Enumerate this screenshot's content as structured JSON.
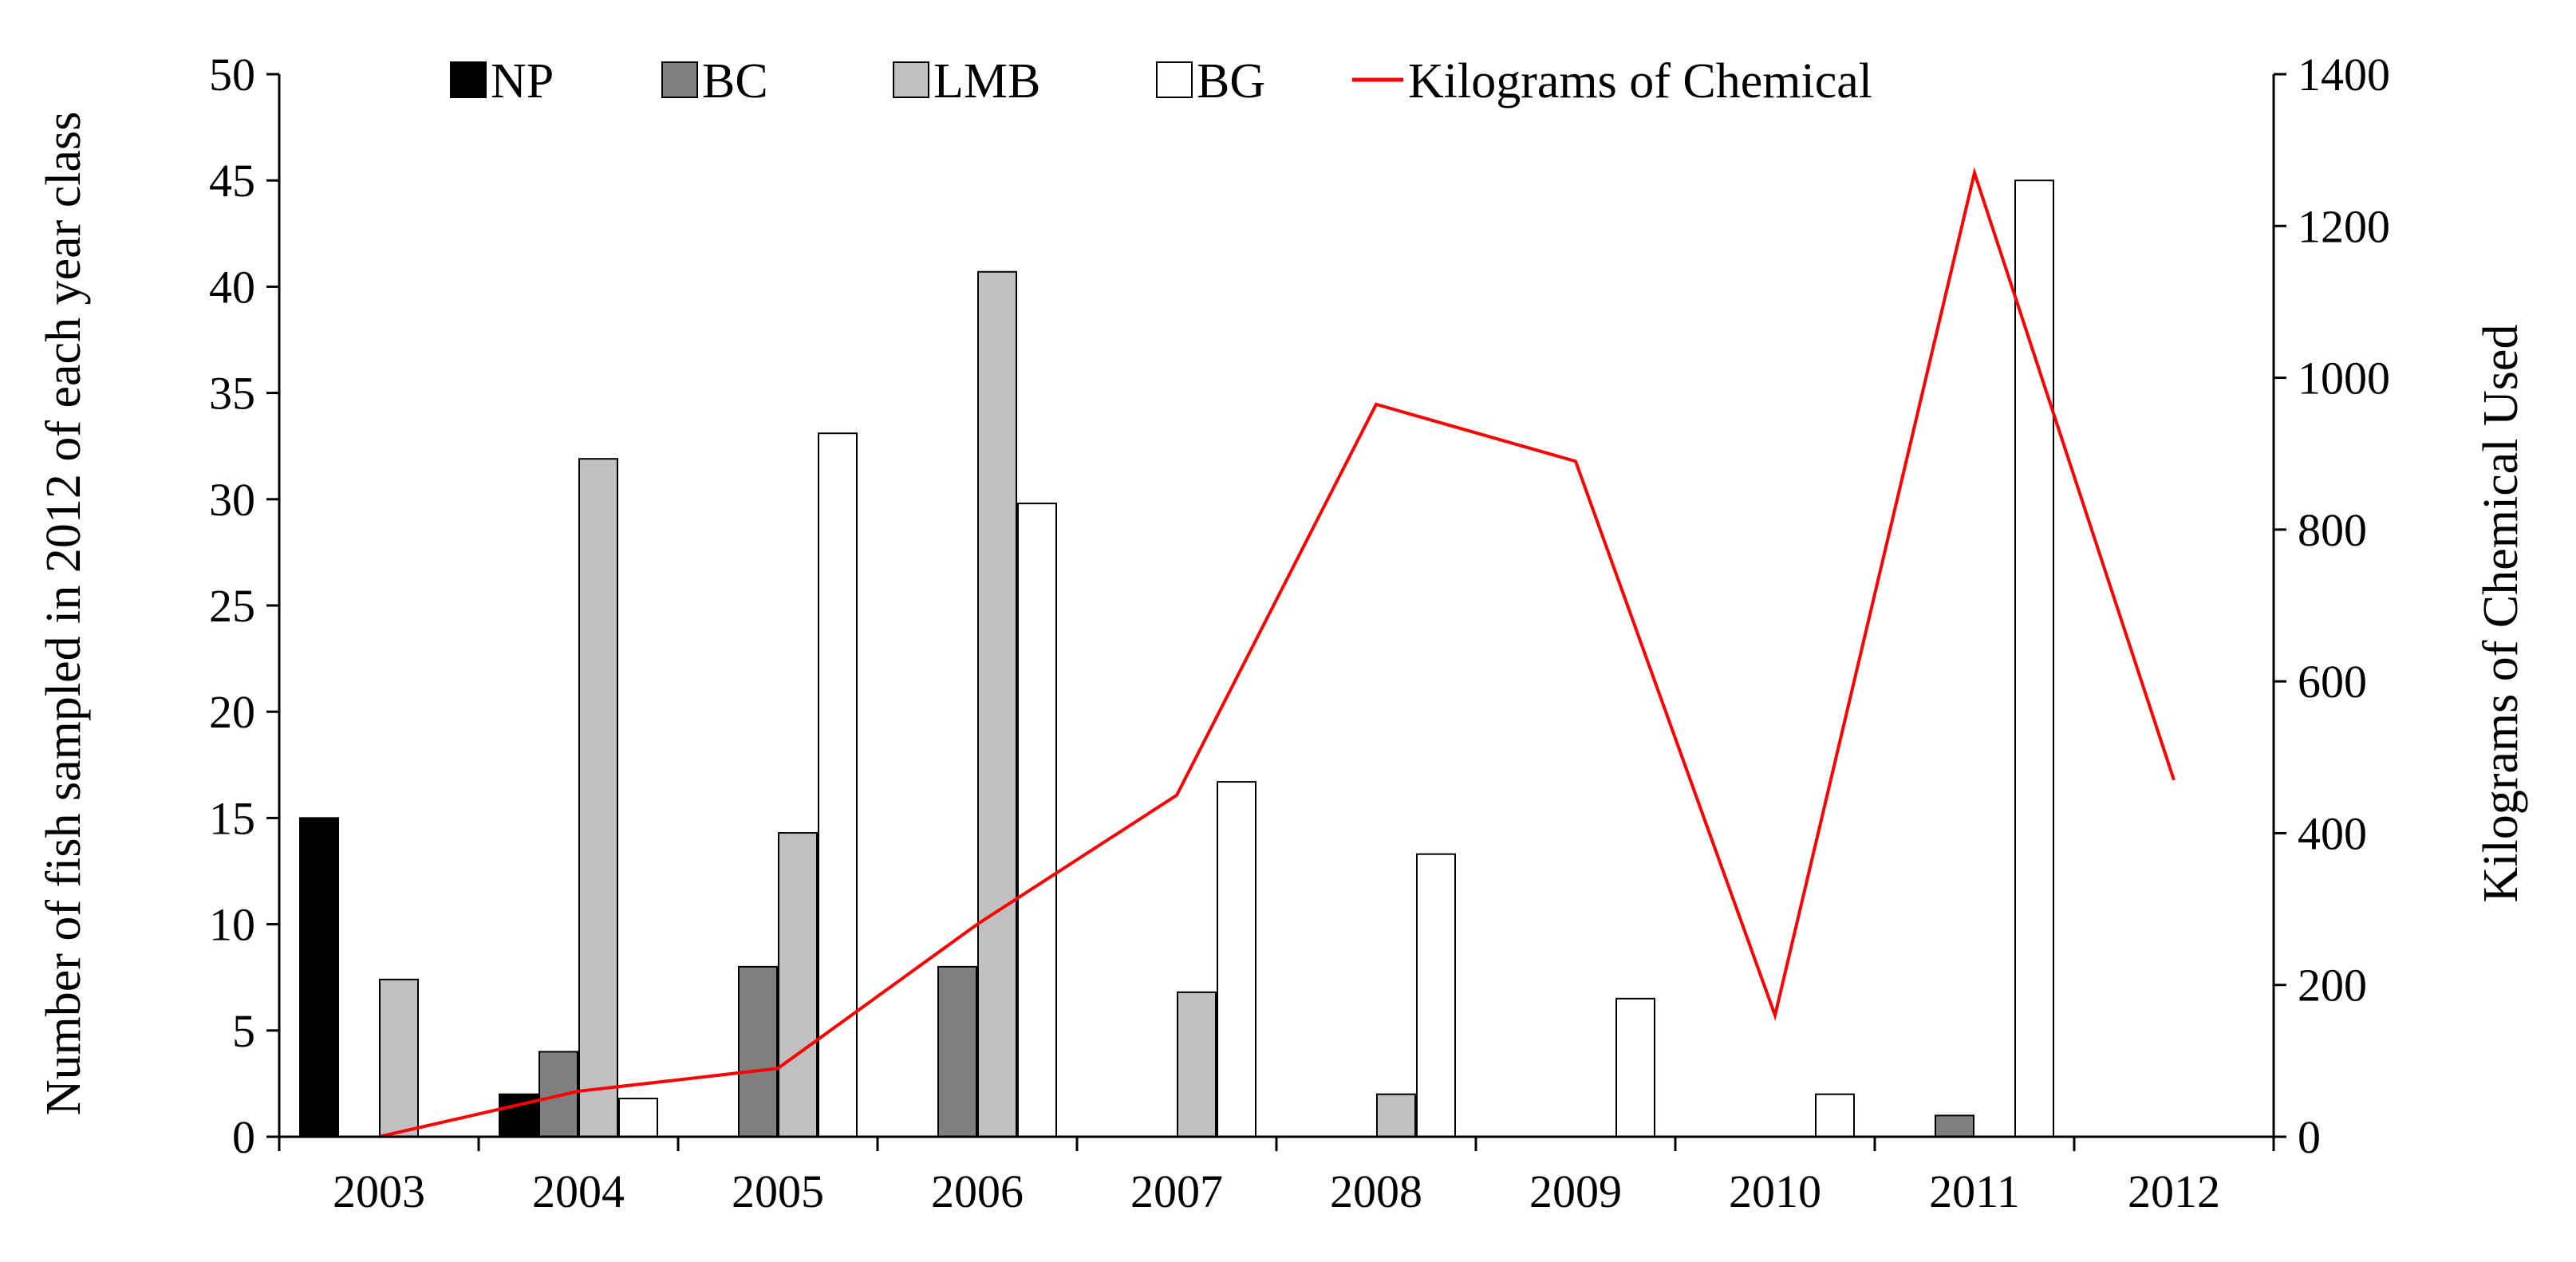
{
  "chart_data": {
    "type": "bar",
    "categories": [
      "2003",
      "2004",
      "2005",
      "2006",
      "2007",
      "2008",
      "2009",
      "2010",
      "2011",
      "2012"
    ],
    "ylabel": "Number of fish sampled in 2012 of each year class",
    "y2label": "Kilograms of Chemical Used",
    "ylim": [
      0,
      50
    ],
    "yticks": [
      "0",
      "5",
      "10",
      "15",
      "20",
      "25",
      "30",
      "35",
      "40",
      "45",
      "50"
    ],
    "y2lim": [
      0,
      1400
    ],
    "y2ticks": [
      "0",
      "200",
      "400",
      "600",
      "800",
      "1000",
      "1200",
      "1400"
    ],
    "legend_position": "top",
    "series": [
      {
        "name": "NP",
        "type": "bar",
        "color": "#000000",
        "values": [
          15,
          2,
          0,
          0,
          0,
          0,
          0,
          0,
          0,
          0
        ]
      },
      {
        "name": "BC",
        "type": "bar",
        "color": "#7f7f7f",
        "values": [
          0,
          4,
          8,
          8,
          0,
          0,
          0,
          0,
          1,
          0
        ]
      },
      {
        "name": "LMB",
        "type": "bar",
        "color": "#c0c0c0",
        "values": [
          7.4,
          31.9,
          14.3,
          40.7,
          6.8,
          2,
          0,
          0,
          0,
          0
        ]
      },
      {
        "name": "BG",
        "type": "bar",
        "color": "#ffffff",
        "values": [
          0,
          1.8,
          33.1,
          29.8,
          16.7,
          13.3,
          6.5,
          2,
          45,
          0
        ]
      },
      {
        "name": "Kilograms of Chemical",
        "type": "line",
        "axis": "right",
        "color": "#ff0000",
        "values": [
          0,
          60,
          90,
          280,
          450,
          965,
          890,
          160,
          1270,
          470
        ]
      }
    ]
  }
}
